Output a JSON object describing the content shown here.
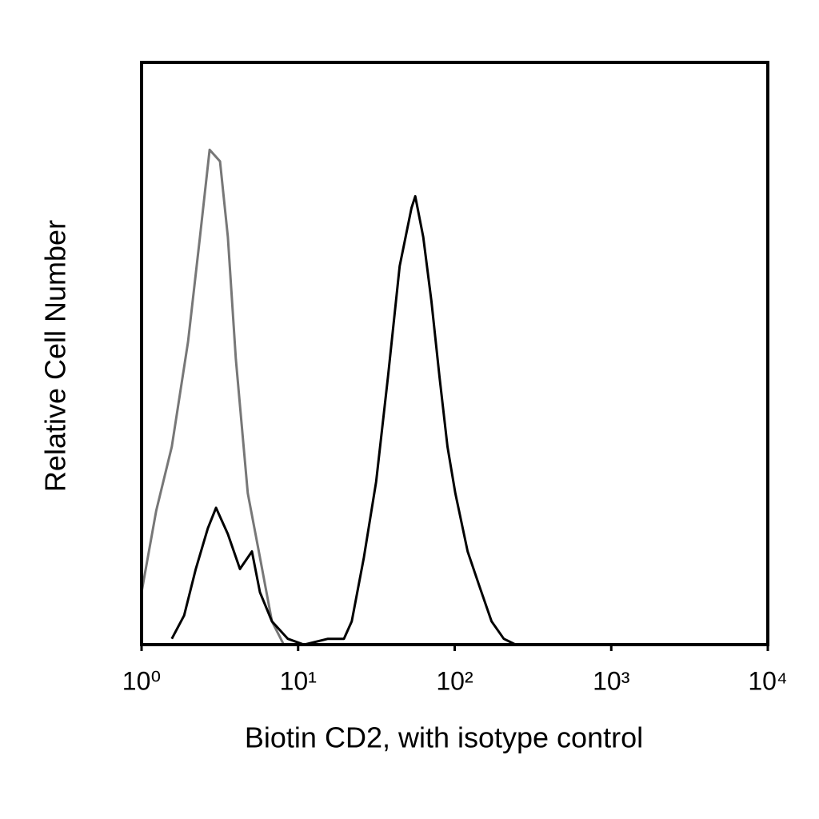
{
  "chart_data": {
    "type": "line",
    "xlabel": "Biotin CD2, with isotype control",
    "ylabel": "Relative Cell Number",
    "log_x": true,
    "xlim": [
      1,
      10000
    ],
    "xticks": [
      {
        "value": 1,
        "label": "10⁰"
      },
      {
        "value": 10,
        "label": "10¹"
      },
      {
        "value": 100,
        "label": "10²"
      },
      {
        "value": 1000,
        "label": "10³"
      },
      {
        "value": 10000,
        "label": "10⁴"
      }
    ],
    "ylim": [
      0,
      100
    ],
    "series": [
      {
        "color": "#777777",
        "x": [
          1,
          1.24,
          1.56,
          1.98,
          2.36,
          2.72,
          3.17,
          3.56,
          4.0,
          4.77,
          5.7,
          6.8,
          8.1
        ],
        "values": [
          9,
          23,
          34,
          52,
          70,
          85,
          83,
          70,
          49,
          26,
          15,
          4,
          0
        ]
      },
      {
        "color": "#000000",
        "x": [
          1.56,
          1.87,
          2.22,
          2.65,
          2.99,
          3.56,
          4.25,
          5.07,
          5.7,
          6.8,
          8.6,
          10.9,
          15.5,
          19.6,
          22,
          26.3,
          31.5,
          37.5,
          44.5,
          53,
          56,
          63,
          71,
          80,
          90,
          101,
          121,
          144,
          172,
          206,
          245
        ],
        "values": [
          1,
          5,
          13,
          20,
          23.5,
          19,
          13,
          16,
          9,
          4,
          1,
          0,
          1,
          1,
          4,
          15,
          28,
          46,
          65,
          75,
          77,
          70,
          59,
          46,
          34,
          26,
          16,
          10,
          4,
          1,
          0
        ]
      }
    ]
  }
}
